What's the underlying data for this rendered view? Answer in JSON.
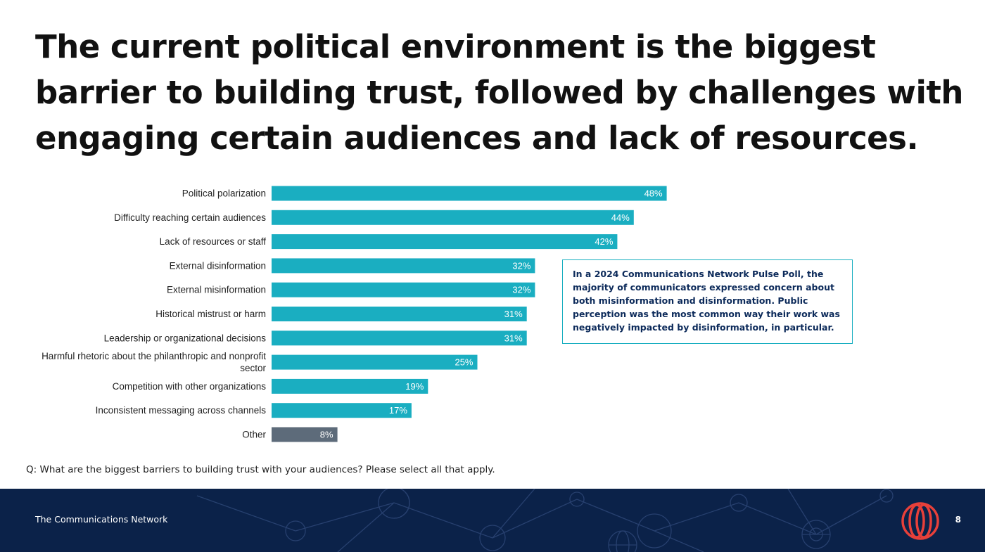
{
  "slide": {
    "title": "The current political environment is the biggest barrier to building trust, followed by challenges with engaging certain audiences and lack of resources.",
    "callout": "In a 2024 Communications Network Pulse Poll, the majority of communicators expressed concern about both misinformation and disinformation. Public perception was the most common way their work was negatively impacted by disinformation, in particular.",
    "question": "Q: What are the biggest barriers to building trust with your audiences? Please select all that apply.",
    "footer_brand": "The Communications Network",
    "page_number": "8"
  },
  "colors": {
    "bar": "#1aaec1",
    "bar_other": "#5d6b7a",
    "footer_bg": "#0b2249",
    "logo": "#e8403a"
  },
  "icons": [
    "communications-network-logo-icon"
  ],
  "chart_data": {
    "type": "bar",
    "orientation": "horizontal",
    "title": "",
    "xlabel": "",
    "ylabel": "",
    "xlim": [
      0,
      48
    ],
    "grid": false,
    "categories": [
      "Political polarization",
      "Difficulty reaching certain audiences",
      "Lack of resources or staff",
      "External disinformation",
      "External misinformation",
      "Historical mistrust or harm",
      "Leadership or organizational decisions",
      "Harmful rhetoric about the philanthropic and nonprofit sector",
      "Competition with other organizations",
      "Inconsistent messaging across channels",
      "Other"
    ],
    "values": [
      48,
      44,
      42,
      32,
      32,
      31,
      31,
      25,
      19,
      17,
      8
    ],
    "data_labels": [
      "48%",
      "44%",
      "42%",
      "32%",
      "32%",
      "31%",
      "31%",
      "25%",
      "19%",
      "17%",
      "8%"
    ]
  }
}
